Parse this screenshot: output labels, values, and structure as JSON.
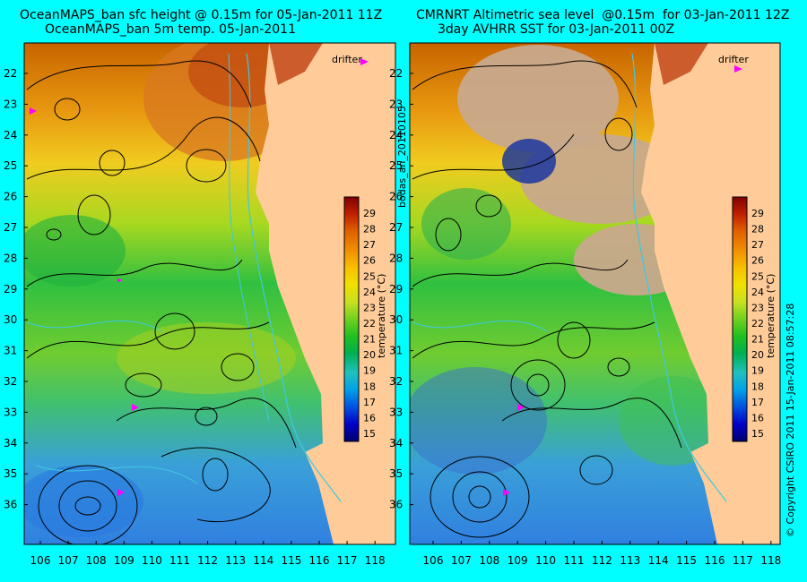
{
  "left_panel": {
    "title_line1": "OceanMAPS_ban sfc height @ 0.15m for 05-Jan-2011 11Z",
    "title_line2": "OceanMAPS_ban 5m temp. 05-Jan-2011",
    "drifter_label": "drifter"
  },
  "right_panel": {
    "title_line1": "CMRNRT Altimetric sea level  @0.15m  for 03-Jan-2011 12Z",
    "title_line2": "3day AVHRR SST for 03-Jan-2011 00Z",
    "drifter_label": "drifter"
  },
  "side_labels": {
    "run_id": "bodas_an_20110105",
    "copyright": "© Copyright CSIRO 2011   15-Jan-2011 08:57:28"
  },
  "colorbar": {
    "label": "temperature (°C)",
    "ticks": [
      "15",
      "16",
      "17",
      "18",
      "19",
      "20",
      "21",
      "22",
      "23",
      "24",
      "25",
      "26",
      "27",
      "28",
      "29"
    ]
  },
  "axes": {
    "latitudes": [
      "22",
      "23",
      "24",
      "25",
      "26",
      "27",
      "28",
      "29",
      "30",
      "31",
      "32",
      "33",
      "34",
      "35",
      "36"
    ],
    "longitudes": [
      "106",
      "107",
      "108",
      "109",
      "110",
      "111",
      "112",
      "113",
      "114",
      "115",
      "116",
      "117",
      "118"
    ]
  },
  "colors": {
    "background": "#00ffff",
    "land": "#ffcc99",
    "cloud": "#c8a98c",
    "drifter": "#ff00ff",
    "contour": "#000000",
    "bathymetry": "#40c8e0"
  }
}
